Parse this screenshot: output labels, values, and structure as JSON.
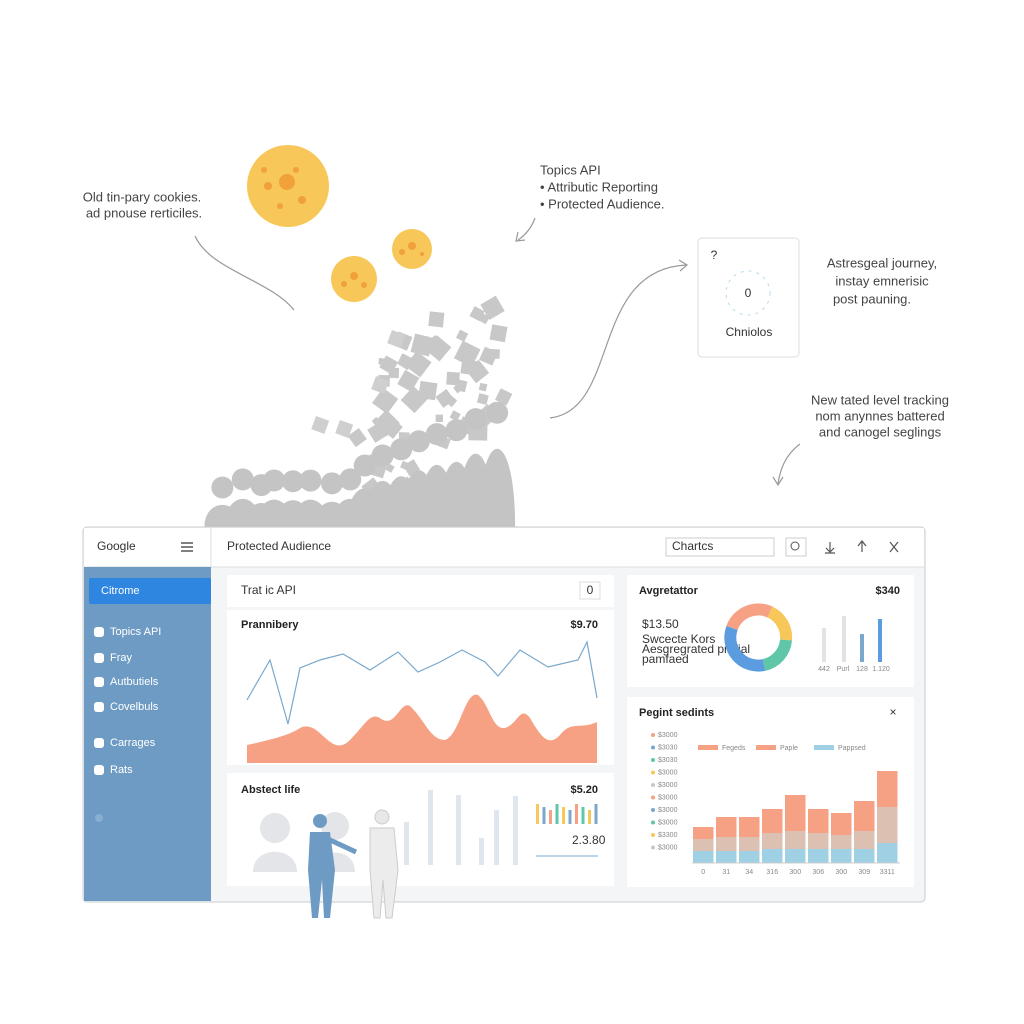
{
  "annotations": {
    "cookies": [
      "Old tin-pary cookies.",
      "ad pnouse rerticiles."
    ],
    "apis": [
      "Topics API",
      "• Attributic Reporting",
      "• Protected Audience."
    ],
    "journey": [
      "Astresgeal journey,",
      "instay emnerisic",
      "post pauning."
    ],
    "tracking": [
      "New tated level tracking",
      "nom anynnes battered",
      "and canogel seglings"
    ]
  },
  "card": {
    "icon": "?",
    "value": "0",
    "label": "Chniolos"
  },
  "dashboard": {
    "logo": "Google",
    "title": "Protected Audience",
    "search": "Chartcs",
    "sidebar": {
      "selected": "Citrome",
      "items": [
        "Topics API",
        "Fray",
        "Autbutiels",
        "Covelbuls",
        "Carrages",
        "Rats"
      ]
    },
    "panels": {
      "topics": {
        "title": "Trat ic API",
        "badge": "0"
      },
      "prannibery": {
        "title": "Prannibery",
        "value": "$9.70"
      },
      "abstract": {
        "title": "Abstect life",
        "value": "$5.20",
        "note": "2.3.80"
      },
      "aggregator": {
        "title": "Avgretattor",
        "value": "$340",
        "sub_value": "$13.50",
        "lines": [
          "Swcecte Kors",
          "Aesgregrated prefial",
          "pamfaed"
        ],
        "axis": [
          "442",
          "Purl",
          "128",
          "1.120"
        ]
      },
      "segments": {
        "title": "Pegint sedints",
        "close": "×",
        "legend": [
          "Fegeds",
          "Paple",
          "Pappsed"
        ],
        "y_labels": [
          "$3000",
          "$3030",
          "$3030",
          "$3000",
          "$3000",
          "$3000",
          "$3000",
          "$3000",
          "$3300",
          "$3000"
        ],
        "x_labels": [
          "0",
          "31",
          "34",
          "316",
          "300",
          "306",
          "300",
          "309",
          "3311"
        ]
      }
    }
  }
}
